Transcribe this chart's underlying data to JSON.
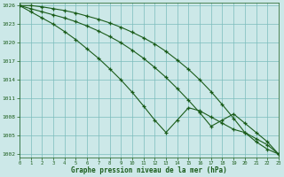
{
  "title": "Graphe pression niveau de la mer (hPa)",
  "background_color": "#cce8e8",
  "grid_color": "#7bbcbc",
  "line_color": "#1a5c1a",
  "ylim": [
    1001.5,
    1026.5
  ],
  "xlim": [
    0,
    23
  ],
  "yticks": [
    1002,
    1005,
    1008,
    1011,
    1014,
    1017,
    1020,
    1023,
    1026
  ],
  "xticks": [
    0,
    1,
    2,
    3,
    4,
    5,
    6,
    7,
    8,
    9,
    10,
    11,
    12,
    13,
    14,
    15,
    16,
    17,
    18,
    19,
    20,
    21,
    22,
    23
  ],
  "line1_y": [
    1026,
    1026,
    1025.8,
    1025.5,
    1025.2,
    1024.8,
    1024.3,
    1023.8,
    1023.2,
    1022.5,
    1021.7,
    1020.8,
    1019.8,
    1018.6,
    1017.2,
    1015.7,
    1014.0,
    1012.1,
    1010.0,
    1007.8,
    1005.5,
    1004.0,
    1002.8,
    1002.0
  ],
  "line2_y": [
    1026,
    1025.5,
    1025.0,
    1024.5,
    1024.0,
    1023.4,
    1022.7,
    1021.9,
    1021.0,
    1020.0,
    1018.8,
    1017.5,
    1016.0,
    1014.4,
    1012.6,
    1010.7,
    1008.7,
    1006.5,
    1007.5,
    1008.5,
    1007.0,
    1005.5,
    1004.0,
    1002.0
  ],
  "line3_y": [
    1026,
    1025.0,
    1024.0,
    1023.0,
    1021.8,
    1020.5,
    1019.0,
    1017.5,
    1015.8,
    1014.0,
    1012.0,
    1009.8,
    1007.5,
    1005.5,
    1007.5,
    1009.5,
    1009.0,
    1008.0,
    1007.0,
    1006.0,
    1005.5,
    1004.5,
    1003.5,
    1002.0
  ]
}
